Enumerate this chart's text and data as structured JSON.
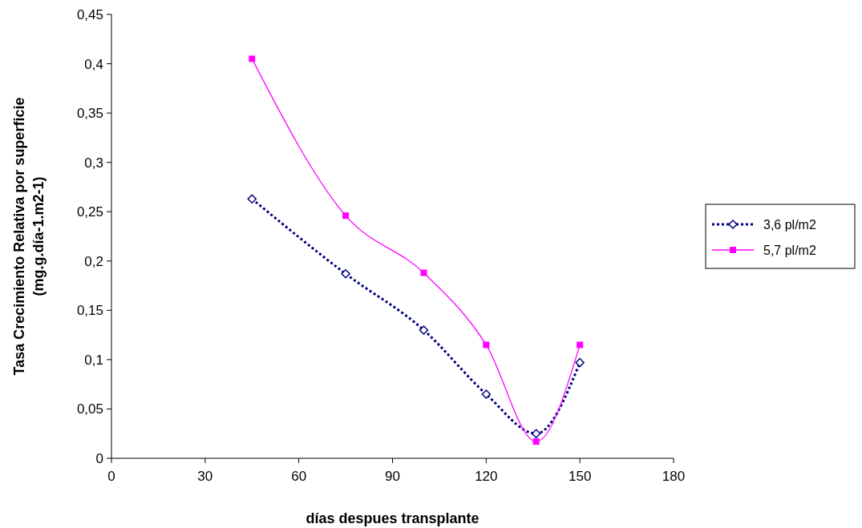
{
  "chart_data": {
    "type": "line",
    "xlabel": "días despues transplante",
    "ylabel": "Tasa Crecimiento Relativa por superficie\n(mg.g.día-1.m2-1)",
    "xlim": [
      0,
      180
    ],
    "xticks": [
      0,
      30,
      60,
      90,
      120,
      150,
      180
    ],
    "ylim": [
      0,
      0.45
    ],
    "yticks": [
      {
        "value": 0,
        "label": "0"
      },
      {
        "value": 0.05,
        "label": "0,05"
      },
      {
        "value": 0.1,
        "label": "0,1"
      },
      {
        "value": 0.15,
        "label": "0,15"
      },
      {
        "value": 0.2,
        "label": "0,2"
      },
      {
        "value": 0.25,
        "label": "0,25"
      },
      {
        "value": 0.3,
        "label": "0,3"
      },
      {
        "value": 0.35,
        "label": "0,35"
      },
      {
        "value": 0.4,
        "label": "0,4"
      },
      {
        "value": 0.45,
        "label": "0,45"
      }
    ],
    "x": [
      45,
      75,
      100,
      120,
      136,
      150
    ],
    "series": [
      {
        "name": "3,6 pl/m2",
        "color": "#000080",
        "values": [
          0.263,
          0.187,
          0.13,
          0.065,
          0.025,
          0.097
        ],
        "marker": "diamond",
        "line_style": "dotted"
      },
      {
        "name": "5,7 pl/m2",
        "color": "#ff00ff",
        "values": [
          0.405,
          0.246,
          0.188,
          0.115,
          0.017,
          0.115
        ],
        "marker": "square",
        "line_style": "solid"
      }
    ],
    "grid": false,
    "legend": "right"
  }
}
